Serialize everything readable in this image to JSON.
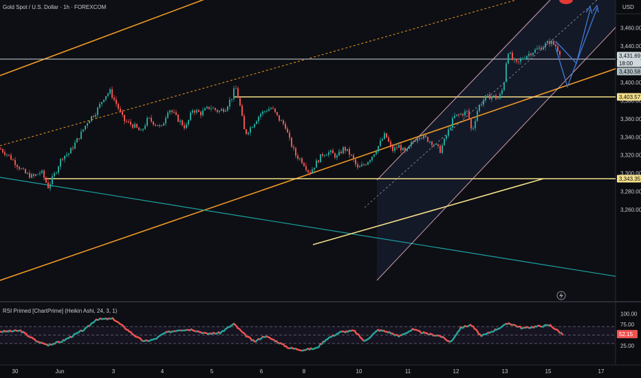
{
  "chart_title": "Gold Spot / U.S. Dollar · 1h · FOREXCOM",
  "currency": "USD",
  "colors": {
    "background": "#0b0c10",
    "up": "#26a69a",
    "down": "#ef5350",
    "orange": "#f59a23",
    "yellow": "#f5e08a",
    "pink": "#f4b6c2",
    "teal_line": "#1aa3a3",
    "blue_arrow": "#3f7bd8",
    "rsi_line_up": "#26a69a",
    "rsi_line_down": "#ef5350"
  },
  "price_tags": {
    "last_price": "3,431.69",
    "countdown": "18:00",
    "bid": "3,430.58",
    "resistance": "3,403.57",
    "support": "3,343.35"
  },
  "rsi": {
    "label": "RSI Primed [ChartPrime] (Heikin Ashi, 24, 3, 1)",
    "value": "52.15",
    "ticks": [
      "100.00",
      "75.00",
      "25.00"
    ]
  },
  "lightning_icon": "lightning-icon",
  "chart_data": [
    {
      "type": "candlestick",
      "title": "Gold Spot / U.S. Dollar · 1h · FOREXCOM",
      "ylabel": "USD",
      "ylim": [
        3253,
        3472
      ],
      "y_ticks": [
        3260,
        3280,
        3300,
        3320,
        3340,
        3360,
        3380,
        3400,
        3420,
        3440,
        3460
      ],
      "y_tick_labels": [
        "3,260.00",
        "3,280.00",
        "3,300.00",
        "3,320.00",
        "3,340.00",
        "3,360.00",
        "3,380.00",
        "3,400.00",
        "3,420.00",
        "3,440.00",
        "3,460.00"
      ],
      "x_tick_labels": [
        "30",
        "Jun",
        "3",
        "4",
        "5",
        "6",
        "8",
        "10",
        "11",
        "12",
        "13",
        "15",
        "17"
      ],
      "close_path": [
        [
          0,
          3327
        ],
        [
          12,
          3320
        ],
        [
          24,
          3310
        ],
        [
          36,
          3300
        ],
        [
          48,
          3296
        ],
        [
          60,
          3302
        ],
        [
          70,
          3285
        ],
        [
          80,
          3300
        ],
        [
          90,
          3318
        ],
        [
          100,
          3322
        ],
        [
          110,
          3334
        ],
        [
          118,
          3344
        ],
        [
          128,
          3358
        ],
        [
          140,
          3368
        ],
        [
          152,
          3385
        ],
        [
          160,
          3390
        ],
        [
          170,
          3375
        ],
        [
          180,
          3358
        ],
        [
          195,
          3352
        ],
        [
          205,
          3345
        ],
        [
          215,
          3360
        ],
        [
          225,
          3355
        ],
        [
          235,
          3350
        ],
        [
          245,
          3372
        ],
        [
          258,
          3360
        ],
        [
          270,
          3350
        ],
        [
          280,
          3370
        ],
        [
          292,
          3366
        ],
        [
          305,
          3373
        ],
        [
          318,
          3368
        ],
        [
          328,
          3372
        ],
        [
          338,
          3385
        ],
        [
          342,
          3396
        ],
        [
          348,
          3378
        ],
        [
          356,
          3343
        ],
        [
          366,
          3352
        ],
        [
          378,
          3365
        ],
        [
          388,
          3370
        ],
        [
          395,
          3372
        ],
        [
          405,
          3360
        ],
        [
          415,
          3352
        ],
        [
          420,
          3338
        ],
        [
          430,
          3320
        ],
        [
          440,
          3313
        ],
        [
          450,
          3300
        ],
        [
          460,
          3312
        ],
        [
          470,
          3322
        ],
        [
          480,
          3323
        ],
        [
          490,
          3318
        ],
        [
          500,
          3328
        ],
        [
          510,
          3320
        ],
        [
          520,
          3305
        ],
        [
          530,
          3310
        ],
        [
          540,
          3318
        ],
        [
          550,
          3330
        ],
        [
          560,
          3343
        ],
        [
          570,
          3325
        ],
        [
          580,
          3330
        ],
        [
          590,
          3322
        ],
        [
          600,
          3335
        ],
        [
          610,
          3342
        ],
        [
          620,
          3338
        ],
        [
          630,
          3333
        ],
        [
          640,
          3325
        ],
        [
          650,
          3343
        ],
        [
          660,
          3362
        ],
        [
          670,
          3365
        ],
        [
          680,
          3368
        ],
        [
          686,
          3345
        ],
        [
          695,
          3372
        ],
        [
          705,
          3383
        ],
        [
          715,
          3385
        ],
        [
          725,
          3382
        ],
        [
          732,
          3395
        ],
        [
          738,
          3436
        ],
        [
          745,
          3425
        ],
        [
          752,
          3420
        ],
        [
          760,
          3427
        ],
        [
          770,
          3432
        ],
        [
          780,
          3436
        ],
        [
          790,
          3440
        ],
        [
          800,
          3445
        ],
        [
          808,
          3440
        ],
        [
          816,
          3431
        ]
      ]
    },
    {
      "type": "line",
      "title": "RSI Primed [ChartPrime] (Heikin Ashi, 24, 3, 1)",
      "ylim": [
        10,
        100
      ],
      "y_ticks": [
        100,
        75,
        25
      ],
      "levels": [
        70,
        50,
        30
      ],
      "last_value": 52.15,
      "x": [
        0,
        30,
        55,
        70,
        90,
        110,
        125,
        140,
        165,
        180,
        200,
        210,
        225,
        240,
        260,
        280,
        300,
        320,
        340,
        355,
        370,
        385,
        400,
        420,
        440,
        460,
        475,
        495,
        515,
        530,
        550,
        565,
        580,
        600,
        620,
        640,
        655,
        670,
        685,
        700,
        720,
        740,
        760,
        780,
        800,
        818
      ],
      "values": [
        58,
        60,
        34,
        27,
        35,
        52,
        65,
        87,
        88,
        69,
        44,
        35,
        40,
        55,
        62,
        63,
        53,
        55,
        76,
        52,
        34,
        48,
        37,
        20,
        15,
        19,
        41,
        57,
        60,
        35,
        62,
        57,
        47,
        63,
        53,
        48,
        33,
        67,
        74,
        47,
        62,
        78,
        66,
        70,
        73,
        52
      ]
    }
  ]
}
